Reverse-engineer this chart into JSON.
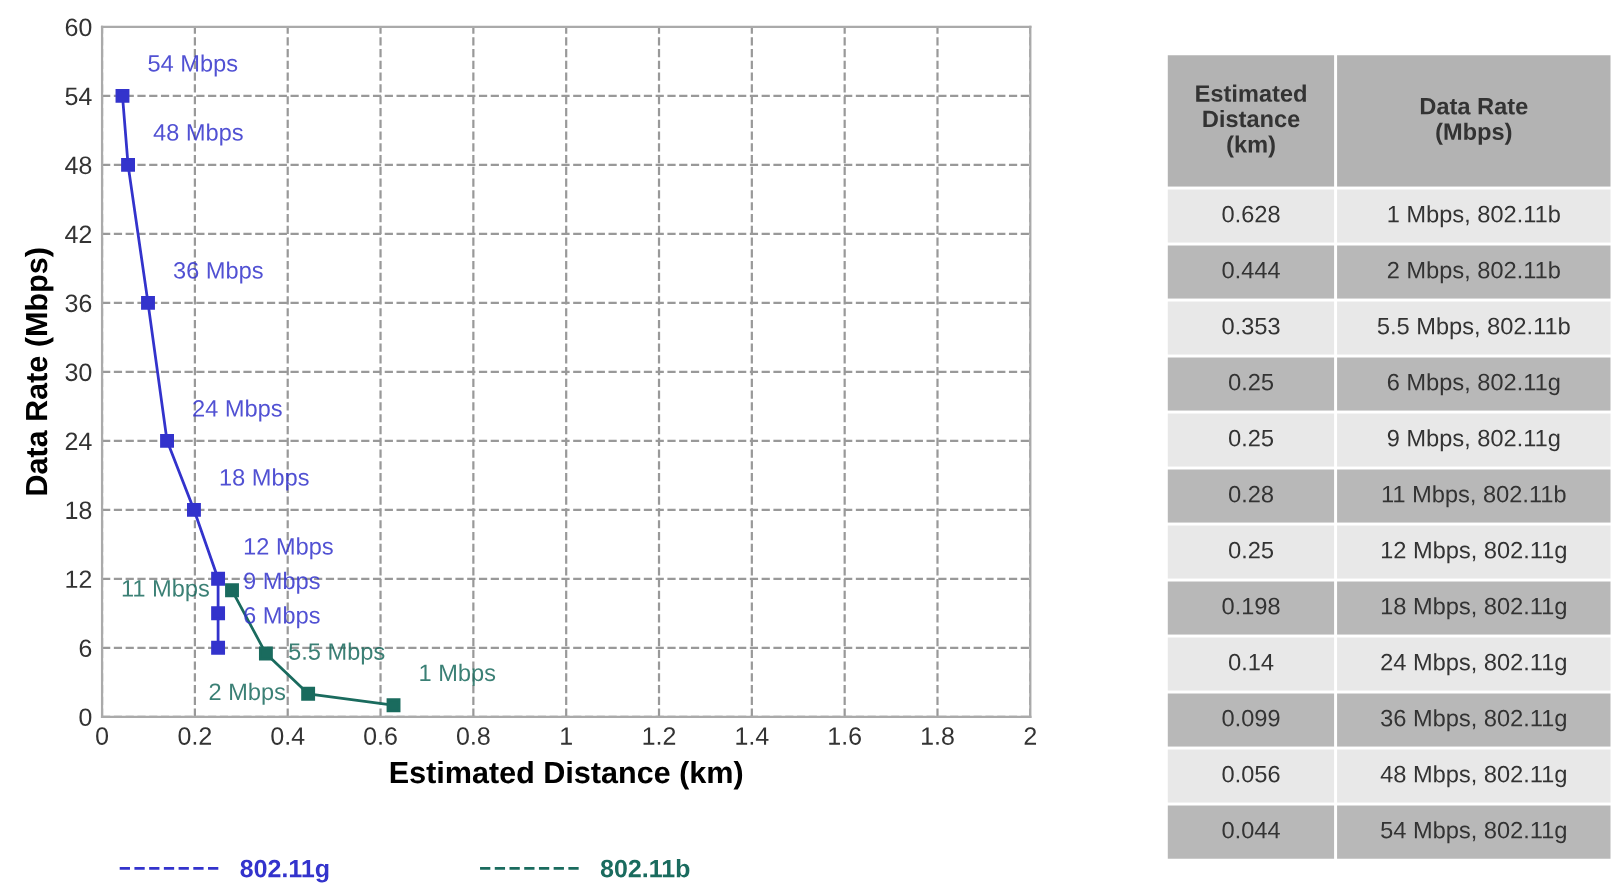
{
  "chart_data": [
    {
      "type": "line",
      "xlabel": "Estimated Distance (km)",
      "ylabel": "Data Rate (Mbps)",
      "xlim": [
        0,
        2
      ],
      "xticks": [
        0,
        0.2,
        0.4,
        0.6,
        0.8,
        1,
        1.2,
        1.4,
        1.6,
        1.8,
        2
      ],
      "ylim": [
        0,
        60
      ],
      "yticks": [
        0,
        6,
        12,
        18,
        24,
        30,
        36,
        42,
        48,
        54,
        60
      ],
      "grid": true,
      "legend": "bottom",
      "marker": "square",
      "line_style": "solid",
      "series": [
        {
          "name": "802.11g",
          "color": "#3333cc",
          "x": [
            0.044,
            0.056,
            0.099,
            0.14,
            0.198,
            0.25,
            0.25,
            0.25
          ],
          "values": [
            54,
            48,
            36,
            24,
            18,
            12,
            9,
            6
          ],
          "value_labels": [
            "54 Mbps",
            "48 Mbps",
            "36 Mbps",
            "24 Mbps",
            "18 Mbps",
            "12 Mbps",
            "9 Mbps",
            "6 Mbps"
          ]
        },
        {
          "name": "802.11b",
          "color": "#1a6b5e",
          "x": [
            0.28,
            0.353,
            0.444,
            0.628
          ],
          "values": [
            11,
            5.5,
            2,
            1
          ],
          "value_labels": [
            "11 Mbps",
            "5.5 Mbps",
            "2 Mbps",
            "1 Mbps"
          ]
        }
      ]
    },
    {
      "type": "other",
      "annotations": [
        "Estimated\nDistance\n(km)",
        "Data Rate\n(Mbps)",
        "0.628",
        "1 Mbps, 802.11b",
        "0.444",
        "2 Mbps, 802.11b",
        "0.353",
        "5.5 Mbps, 802.11b",
        "0.25",
        "6 Mbps, 802.11g",
        "0.25",
        "9 Mbps, 802.11g",
        "0.28",
        "11 Mbps, 802.11b",
        "0.25",
        "12 Mbps, 802.11g",
        "0.198",
        "18 Mbps, 802.11g",
        "0.14",
        "24 Mbps, 802.11g",
        "0.099",
        "36 Mbps, 802.11g",
        "0.056",
        "48 Mbps, 802.11g",
        "0.044",
        "54 Mbps, 802.11g"
      ]
    }
  ]
}
